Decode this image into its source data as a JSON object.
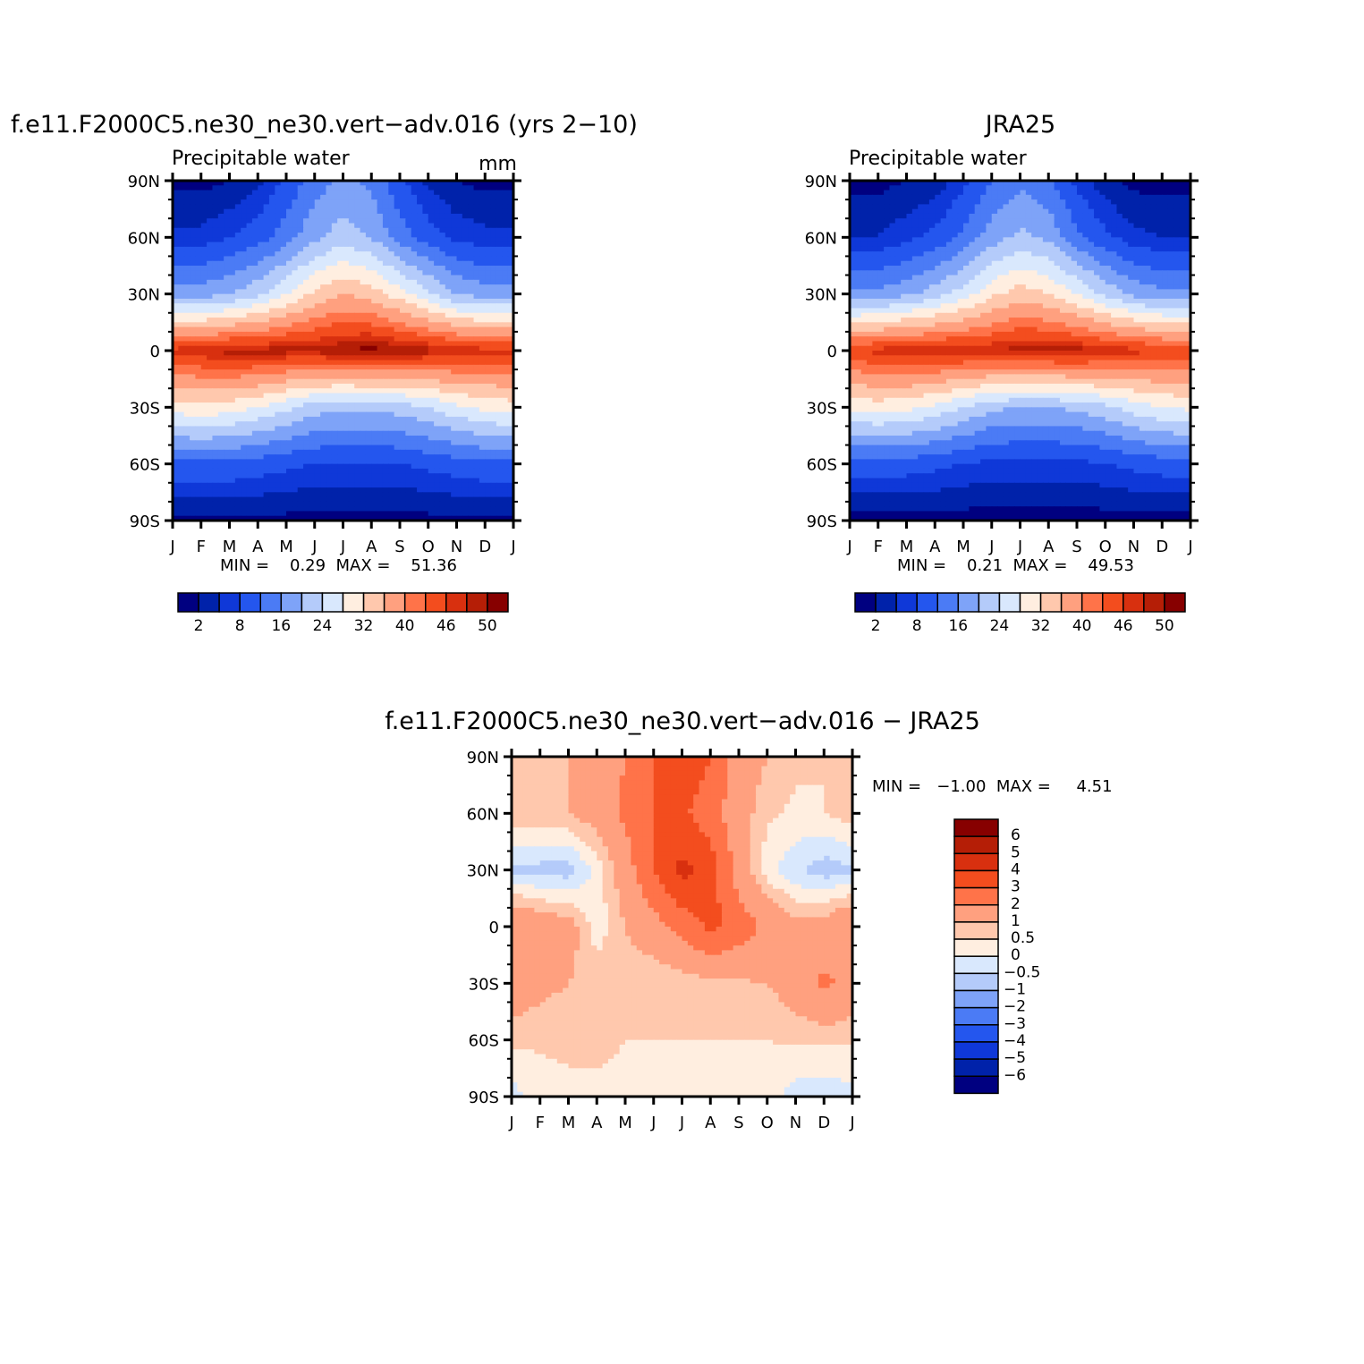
{
  "chart_data": [
    {
      "type": "heatmap",
      "title": "f.e11.F2000C5.ne30_ne30.vert−adv.016 (yrs 2−10)",
      "subtitle": "Precipitable water",
      "units": "mm",
      "stats": "MIN =    0.29  MAX =    51.36",
      "xlabel": "",
      "ylabel": "",
      "x_ticks": [
        "J",
        "F",
        "M",
        "A",
        "M",
        "J",
        "J",
        "A",
        "S",
        "O",
        "N",
        "D",
        "J"
      ],
      "y_ticks": [
        "90N",
        "60N",
        "30N",
        "0",
        "30S",
        "60S",
        "90S"
      ],
      "lat_range": [
        -90,
        90
      ],
      "colorbar": {
        "orientation": "horizontal",
        "colors": [
          "#000080",
          "#0022aa",
          "#0f38d8",
          "#2456ee",
          "#4b7bf5",
          "#7ea3f8",
          "#b4cbfa",
          "#d9e8fd",
          "#ffeee0",
          "#ffc8ad",
          "#ffa07f",
          "#ff7349",
          "#f34d1e",
          "#d8300f",
          "#b51e06",
          "#870000"
        ],
        "labels": [
          "2",
          "8",
          "16",
          "24",
          "32",
          "40",
          "46",
          "50"
        ]
      },
      "seasonal_cycle": {
        "description_values": "zonal-mean precipitable water (mm) by latitude, Jan..Jan",
        "lat": [
          90,
          60,
          30,
          0,
          -30,
          -60,
          -90
        ],
        "values": [
          [
            1,
            1,
            2,
            4,
            9,
            14,
            17,
            15,
            9,
            4,
            2,
            1,
            1
          ],
          [
            6,
            6,
            8,
            10,
            14,
            19,
            22,
            20,
            14,
            10,
            7,
            6,
            6
          ],
          [
            18,
            18,
            20,
            23,
            28,
            33,
            36,
            34,
            30,
            25,
            20,
            18,
            18
          ],
          [
            47,
            48,
            49,
            49,
            49,
            49,
            50,
            51,
            50,
            49,
            48,
            47,
            47
          ],
          [
            30,
            31,
            30,
            28,
            25,
            22,
            21,
            21,
            22,
            24,
            27,
            29,
            30
          ],
          [
            11,
            11,
            11,
            10,
            9,
            8,
            8,
            8,
            8,
            9,
            10,
            11,
            11
          ],
          [
            1,
            1,
            1,
            1,
            1,
            0.5,
            0.5,
            0.5,
            0.5,
            1,
            1,
            1,
            1
          ]
        ]
      }
    },
    {
      "type": "heatmap",
      "title": "JRA25",
      "subtitle": "Precipitable water",
      "stats": "MIN =    0.21  MAX =    49.53",
      "xlabel": "",
      "ylabel": "",
      "x_ticks": [
        "J",
        "F",
        "M",
        "A",
        "M",
        "J",
        "J",
        "A",
        "S",
        "O",
        "N",
        "D",
        "J"
      ],
      "y_ticks": [
        "90N",
        "60N",
        "30N",
        "0",
        "30S",
        "60S",
        "90S"
      ],
      "lat_range": [
        -90,
        90
      ],
      "colorbar": {
        "orientation": "horizontal",
        "labels": [
          "2",
          "8",
          "16",
          "24",
          "32",
          "40",
          "46",
          "50"
        ]
      },
      "seasonal_cycle": {
        "lat": [
          90,
          60,
          30,
          0,
          -30,
          -60,
          -90
        ],
        "values": [
          [
            1,
            1,
            2,
            3,
            7,
            12,
            15,
            13,
            7,
            3,
            1,
            1,
            1
          ],
          [
            5,
            5,
            7,
            9,
            13,
            18,
            21,
            19,
            13,
            9,
            6,
            5,
            5
          ],
          [
            17,
            17,
            19,
            22,
            26,
            31,
            34,
            32,
            28,
            23,
            19,
            17,
            17
          ],
          [
            46,
            47,
            48,
            48,
            48,
            48,
            49,
            49,
            49,
            48,
            47,
            46,
            46
          ],
          [
            29,
            30,
            29,
            27,
            24,
            21,
            20,
            20,
            21,
            23,
            26,
            28,
            29
          ],
          [
            10,
            10,
            10,
            9,
            8,
            7,
            7,
            7,
            7,
            8,
            9,
            10,
            10
          ],
          [
            0.5,
            0.5,
            0.5,
            0.5,
            0.5,
            0.3,
            0.3,
            0.3,
            0.3,
            0.5,
            0.5,
            0.5,
            0.5
          ]
        ]
      }
    },
    {
      "type": "heatmap",
      "title": "f.e11.F2000C5.ne30_ne30.vert−adv.016 − JRA25",
      "stats": "MIN =   −1.00  MAX =     4.51",
      "xlabel": "",
      "ylabel": "",
      "x_ticks": [
        "J",
        "F",
        "M",
        "A",
        "M",
        "J",
        "J",
        "A",
        "S",
        "O",
        "N",
        "D",
        "J"
      ],
      "y_ticks": [
        "90N",
        "60N",
        "30N",
        "0",
        "30S",
        "60S",
        "90S"
      ],
      "lat_range": [
        -90,
        90
      ],
      "colorbar": {
        "orientation": "vertical",
        "colors": [
          "#870000",
          "#b51e06",
          "#d8300f",
          "#f34d1e",
          "#ff7349",
          "#ffa07f",
          "#ffc8ad",
          "#ffeee0",
          "#d9e8fd",
          "#b4cbfa",
          "#7ea3f8",
          "#4b7bf5",
          "#2456ee",
          "#0f38d8",
          "#0022aa",
          "#000080"
        ],
        "labels": [
          "6",
          "5",
          "4",
          "3",
          "2",
          "1",
          "0.5",
          "0",
          "−0.5",
          "−1",
          "−2",
          "−3",
          "−4",
          "−5",
          "−6"
        ]
      },
      "seasonal_cycle": {
        "lat": [
          90,
          60,
          30,
          0,
          -30,
          -60,
          -90
        ],
        "values": [
          [
            0.8,
            0.9,
            1.0,
            1.5,
            2.0,
            3.0,
            3.8,
            3.0,
            1.5,
            1.0,
            0.6,
            0.5,
            0.8
          ],
          [
            0.8,
            0.9,
            1.0,
            1.4,
            2.2,
            3.0,
            3.2,
            2.4,
            1.4,
            0.6,
            0.4,
            0.5,
            0.8
          ],
          [
            -0.6,
            -0.7,
            -0.8,
            0.2,
            1.5,
            3.0,
            4.3,
            3.6,
            1.5,
            0.2,
            -0.4,
            -0.8,
            -0.6
          ],
          [
            2.0,
            1.6,
            1.4,
            0.2,
            1.0,
            1.6,
            2.4,
            3.2,
            2.6,
            1.8,
            1.2,
            1.4,
            2.0
          ],
          [
            1.6,
            1.2,
            1.0,
            0.8,
            0.6,
            0.5,
            0.6,
            0.8,
            0.9,
            1.0,
            1.4,
            2.2,
            1.6
          ],
          [
            0.6,
            0.6,
            0.6,
            0.6,
            0.5,
            0.5,
            0.5,
            0.5,
            0.5,
            0.5,
            0.6,
            0.6,
            0.6
          ],
          [
            -0.2,
            0.2,
            0.4,
            0.4,
            0.4,
            0.4,
            0.4,
            0.4,
            0.4,
            0.3,
            -0.3,
            -0.3,
            -0.2
          ]
        ]
      }
    }
  ]
}
